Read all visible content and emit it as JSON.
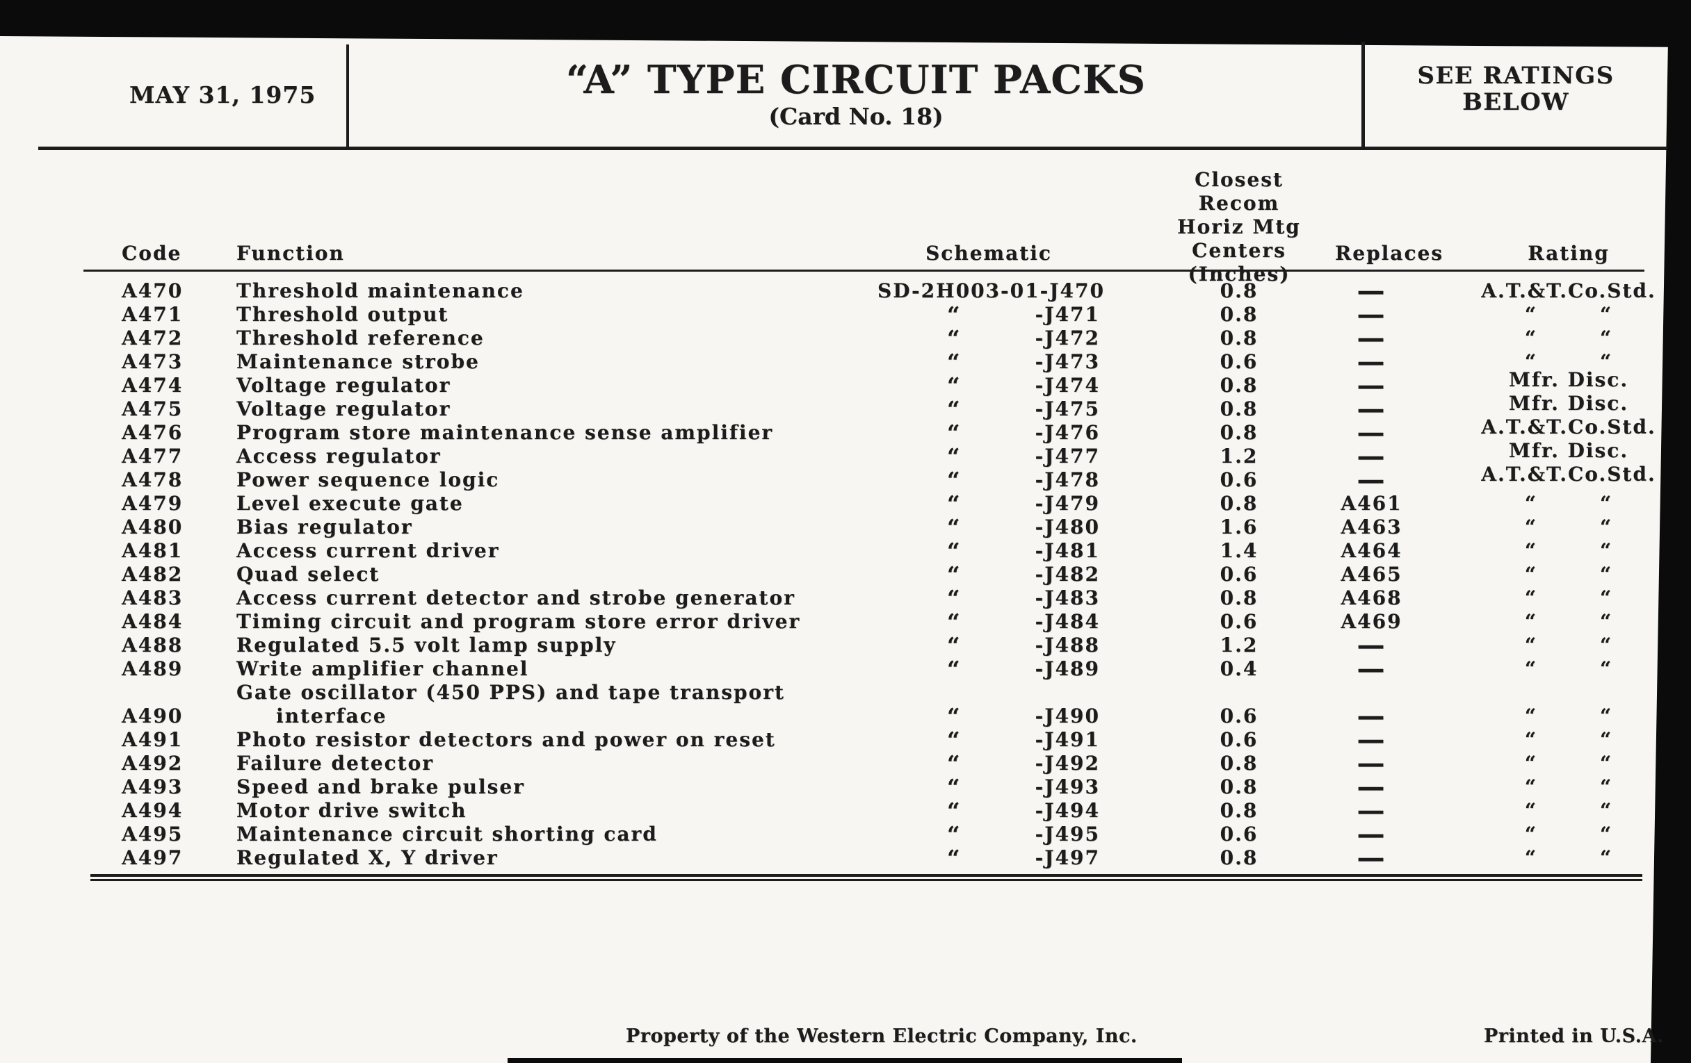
{
  "header": {
    "date": "MAY 31, 1975",
    "title": "“A” TYPE CIRCUIT PACKS",
    "card_no": "(Card No. 18)",
    "ratings_note": "SEE RATINGS\nBELOW"
  },
  "columns": {
    "code": "Code",
    "function": "Function",
    "schematic": "Schematic",
    "centers": "Closest Recom\nHoriz Mtg\nCenters\n(Inches)",
    "replaces": "Replaces",
    "rating": "Rating"
  },
  "rows": [
    {
      "code": "A470",
      "function": "Threshold maintenance",
      "sch_ditto": "",
      "sch_ref": "SD-2H003-01-J470",
      "centers": "0.8",
      "replaces": "—",
      "rating": "A.T.&T.Co.Std."
    },
    {
      "code": "A471",
      "function": "Threshold output",
      "sch_ditto": "“",
      "sch_ref": "-J471",
      "centers": "0.8",
      "replaces": "—",
      "rating": "“   “"
    },
    {
      "code": "A472",
      "function": "Threshold reference",
      "sch_ditto": "“",
      "sch_ref": "-J472",
      "centers": "0.8",
      "replaces": "—",
      "rating": "“   “"
    },
    {
      "code": "A473",
      "function": "Maintenance strobe",
      "sch_ditto": "“",
      "sch_ref": "-J473",
      "centers": "0.6",
      "replaces": "—",
      "rating": "“   “"
    },
    {
      "code": "A474",
      "function": "Voltage regulator",
      "sch_ditto": "“",
      "sch_ref": "-J474",
      "centers": "0.8",
      "replaces": "—",
      "rating": "Mfr. Disc."
    },
    {
      "code": "A475",
      "function": "Voltage regulator",
      "sch_ditto": "“",
      "sch_ref": "-J475",
      "centers": "0.8",
      "replaces": "—",
      "rating": "Mfr. Disc."
    },
    {
      "code": "A476",
      "function": "Program store maintenance sense amplifier",
      "sch_ditto": "“",
      "sch_ref": "-J476",
      "centers": "0.8",
      "replaces": "—",
      "rating": "A.T.&T.Co.Std."
    },
    {
      "code": "A477",
      "function": "Access regulator",
      "sch_ditto": "“",
      "sch_ref": "-J477",
      "centers": "1.2",
      "replaces": "—",
      "rating": "Mfr. Disc."
    },
    {
      "code": "A478",
      "function": "Power sequence logic",
      "sch_ditto": "“",
      "sch_ref": "-J478",
      "centers": "0.6",
      "replaces": "—",
      "rating": "A.T.&T.Co.Std."
    },
    {
      "code": "A479",
      "function": "Level execute gate",
      "sch_ditto": "“",
      "sch_ref": "-J479",
      "centers": "0.8",
      "replaces": "A461",
      "rating": "“   “"
    },
    {
      "code": "A480",
      "function": "Bias regulator",
      "sch_ditto": "“",
      "sch_ref": "-J480",
      "centers": "1.6",
      "replaces": "A463",
      "rating": "“   “"
    },
    {
      "code": "A481",
      "function": "Access current driver",
      "sch_ditto": "“",
      "sch_ref": "-J481",
      "centers": "1.4",
      "replaces": "A464",
      "rating": "“   “"
    },
    {
      "code": "A482",
      "function": "Quad select",
      "sch_ditto": "“",
      "sch_ref": "-J482",
      "centers": "0.6",
      "replaces": "A465",
      "rating": "“   “"
    },
    {
      "code": "A483",
      "function": "Access current detector and strobe generator",
      "sch_ditto": "“",
      "sch_ref": "-J483",
      "centers": "0.8",
      "replaces": "A468",
      "rating": "“   “"
    },
    {
      "code": "A484",
      "function": "Timing circuit and program store error driver",
      "sch_ditto": "“",
      "sch_ref": "-J484",
      "centers": "0.6",
      "replaces": "A469",
      "rating": "“   “"
    },
    {
      "code": "A488",
      "function": "Regulated 5.5 volt lamp supply",
      "sch_ditto": "“",
      "sch_ref": "-J488",
      "centers": "1.2",
      "replaces": "—",
      "rating": "“   “"
    },
    {
      "code": "A489",
      "function": "Write amplifier channel",
      "sch_ditto": "“",
      "sch_ref": "-J489",
      "centers": "0.4",
      "replaces": "—",
      "rating": "“   “"
    },
    {
      "code": "A490",
      "function": "Gate oscillator (450 PPS) and tape transport",
      "function2": "interface",
      "sch_ditto": "“",
      "sch_ref": "-J490",
      "centers": "0.6",
      "replaces": "—",
      "rating": "“   “"
    },
    {
      "code": "A491",
      "function": "Photo resistor detectors and power on reset",
      "sch_ditto": "“",
      "sch_ref": "-J491",
      "centers": "0.6",
      "replaces": "—",
      "rating": "“   “"
    },
    {
      "code": "A492",
      "function": "Failure detector",
      "sch_ditto": "“",
      "sch_ref": "-J492",
      "centers": "0.8",
      "replaces": "—",
      "rating": "“   “"
    },
    {
      "code": "A493",
      "function": "Speed and brake pulser",
      "sch_ditto": "“",
      "sch_ref": "-J493",
      "centers": "0.8",
      "replaces": "—",
      "rating": "“   “"
    },
    {
      "code": "A494",
      "function": "Motor drive switch",
      "sch_ditto": "“",
      "sch_ref": "-J494",
      "centers": "0.8",
      "replaces": "—",
      "rating": "“   “"
    },
    {
      "code": "A495",
      "function": "Maintenance circuit shorting card",
      "sch_ditto": "“",
      "sch_ref": "-J495",
      "centers": "0.6",
      "replaces": "—",
      "rating": "“   “"
    },
    {
      "code": "A497",
      "function": "Regulated X, Y driver",
      "sch_ditto": "“",
      "sch_ref": "-J497",
      "centers": "0.8",
      "replaces": "—",
      "rating": "“   “"
    }
  ],
  "footer": {
    "property": "Property of the Western Electric Company, Inc.",
    "printed": "Printed in U.S.A."
  },
  "colors": {
    "paper": "#f7f6f2",
    "ink": "#1c1c1c",
    "edge": "#0b0b0b"
  }
}
